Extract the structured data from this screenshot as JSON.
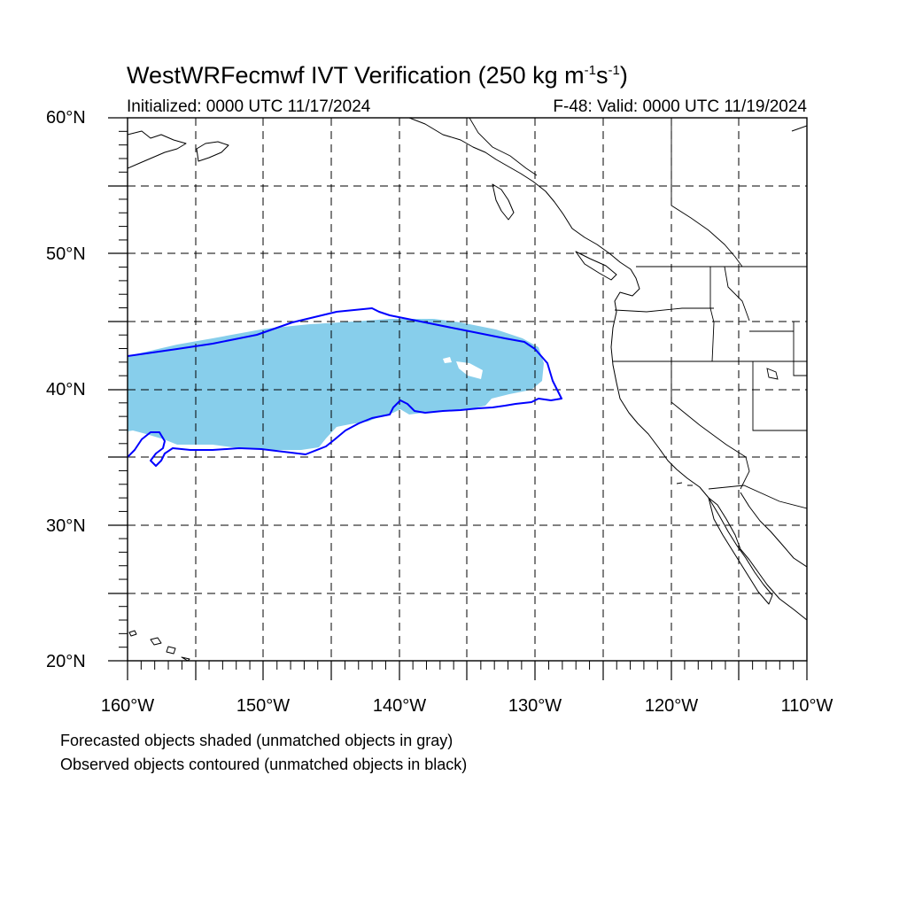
{
  "title": {
    "main": "WestWRFecmwf IVT Verification (250 kg m",
    "exp1": "-1",
    "mid": "s",
    "exp2": "-1",
    "close": ")"
  },
  "subtitle": {
    "initialized": "Initialized: 0000 UTC 11/17/2024",
    "valid": "F-48: Valid: 0000 UTC 11/19/2024"
  },
  "axes": {
    "lon_range": [
      -160,
      -110
    ],
    "lat_range": [
      20,
      60
    ],
    "lat_labels": [
      "60°N",
      "50°N",
      "40°N",
      "30°N",
      "20°N"
    ],
    "lon_labels": [
      "160°W",
      "150°W",
      "140°W",
      "130°W",
      "120°W",
      "110°W"
    ],
    "grid_spacing_deg": 5,
    "grid_style": "dashed"
  },
  "legend_notes": {
    "forecast": "Forecasted objects shaded (unmatched objects in gray)",
    "observed": "Observed objects contoured (unmatched objects in black)"
  },
  "colors": {
    "forecast_fill": "#87ceeb",
    "observed_contour": "#0000ff",
    "coastline": "#000000"
  }
}
